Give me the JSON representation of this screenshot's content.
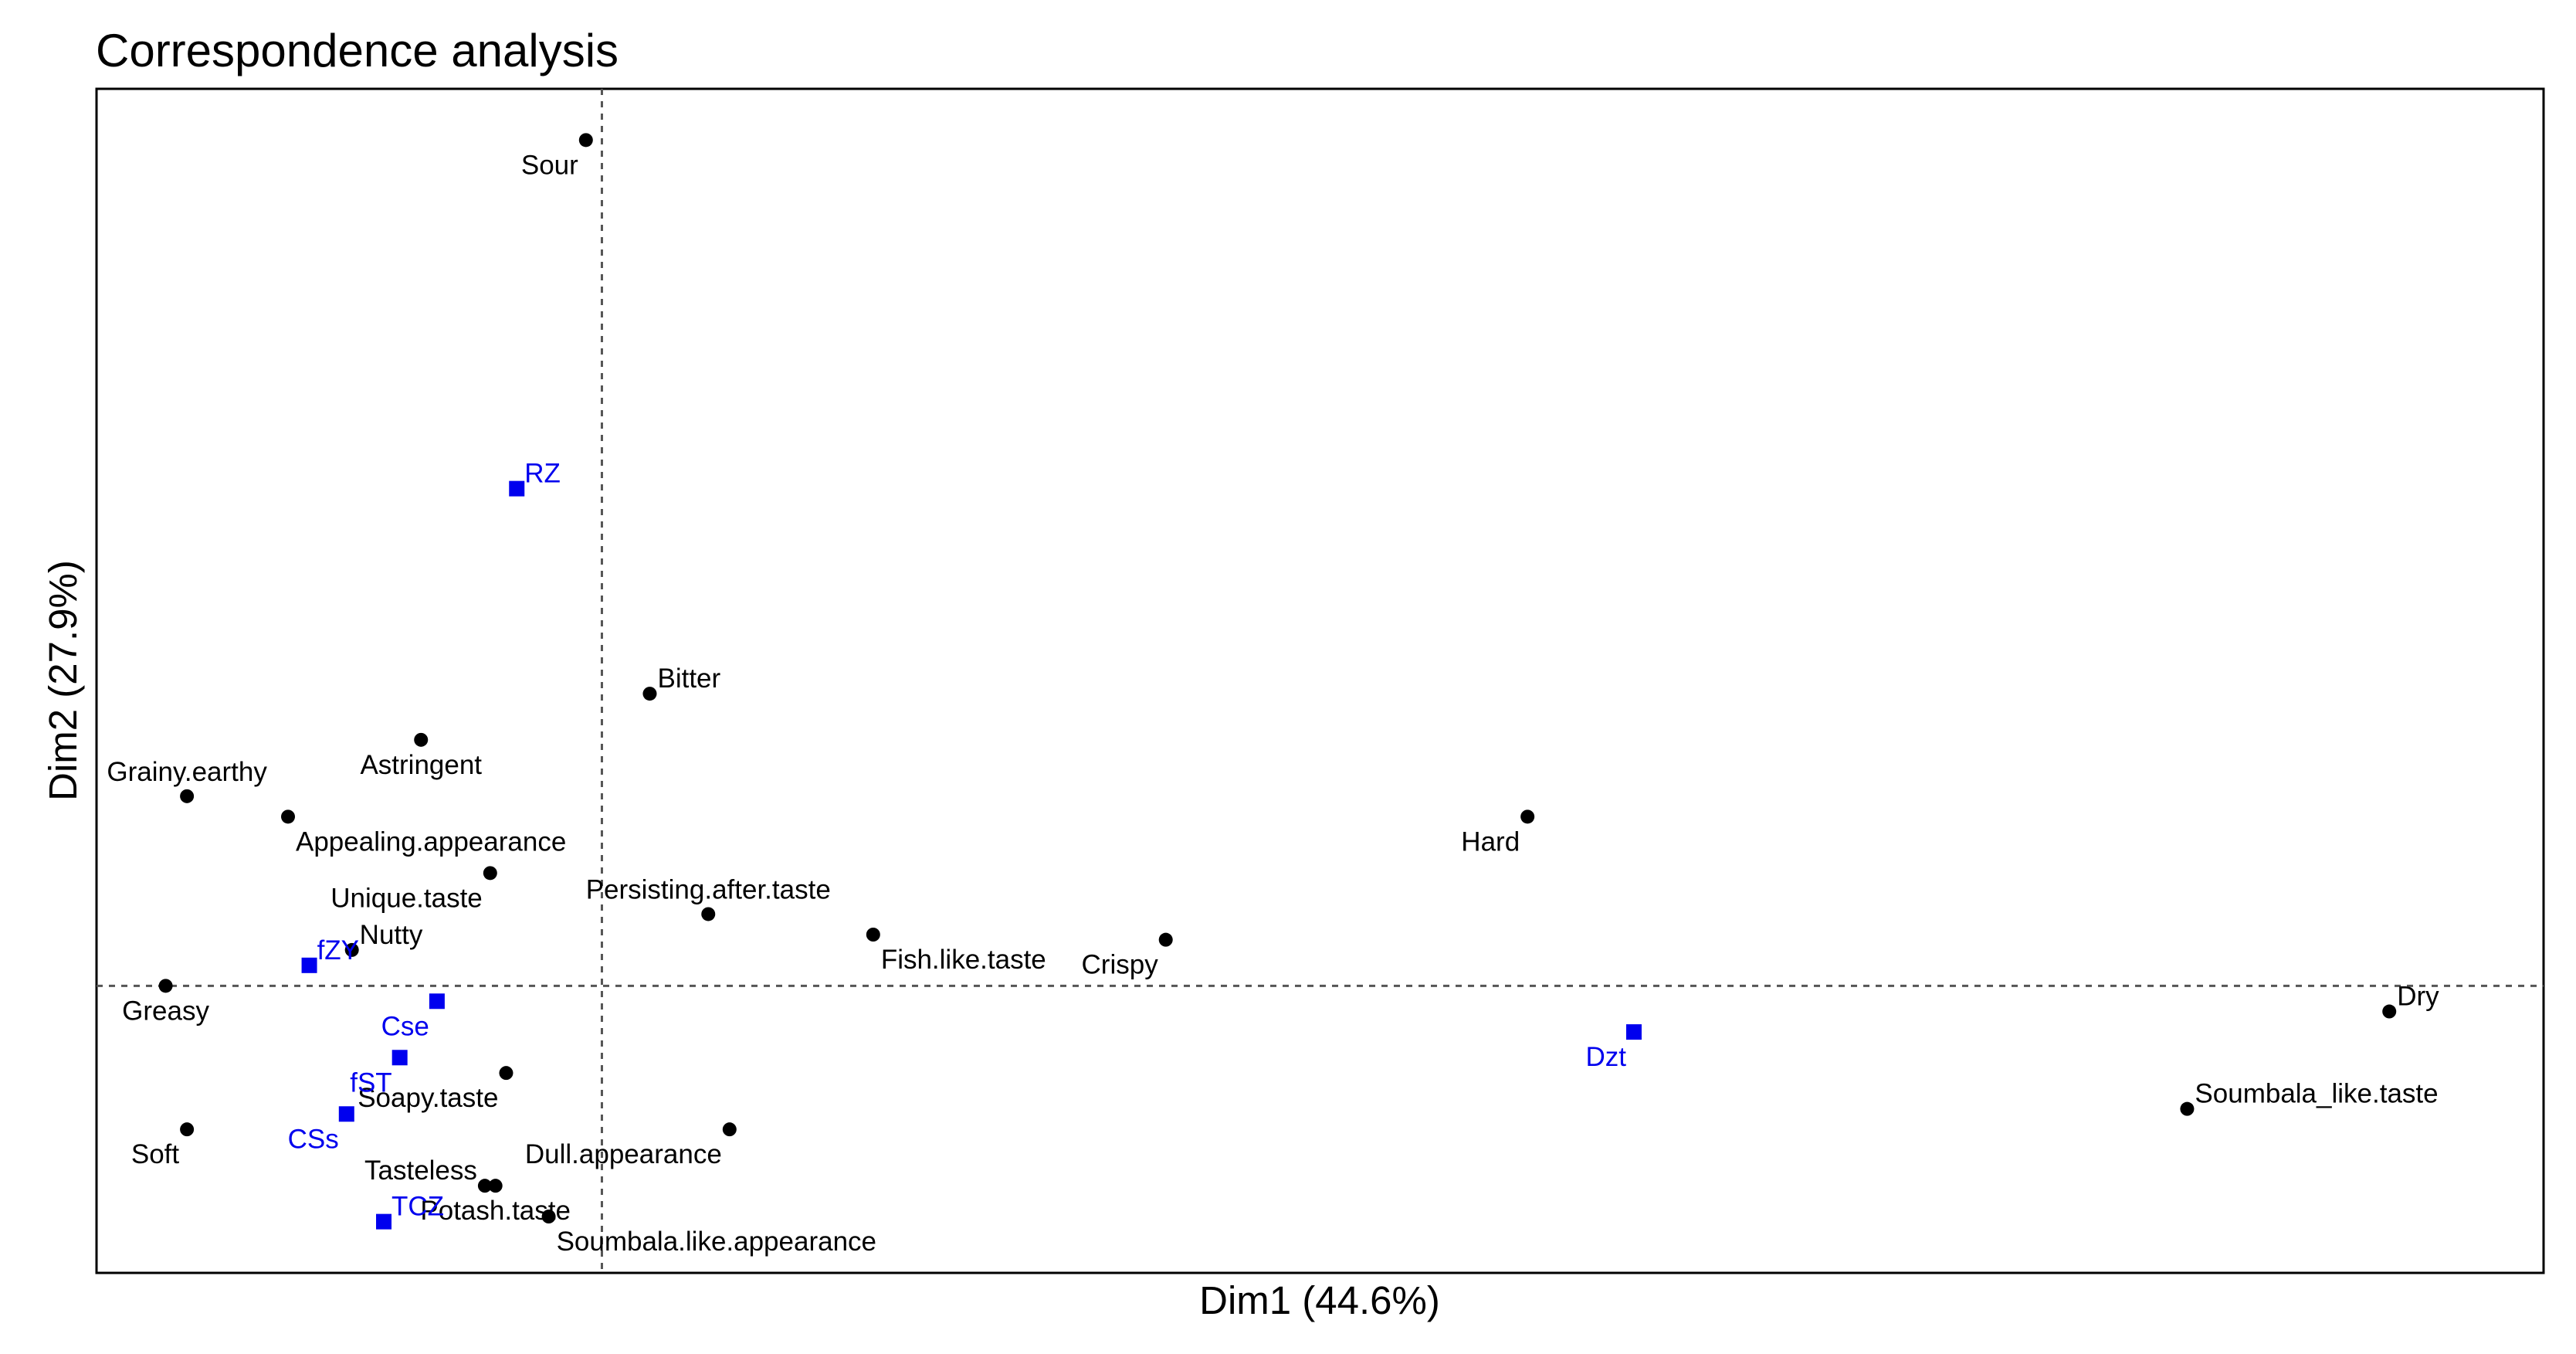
{
  "chart_data": {
    "type": "scatter",
    "title": "Correspondence analysis",
    "xlabel": "Dim1 (44.6%)",
    "ylabel": "Dim2 (27.9%)",
    "xlim": [
      -0.95,
      3.65
    ],
    "ylim": [
      -0.56,
      1.75
    ],
    "grid": false,
    "reference_lines": {
      "x": 0,
      "y": 0
    },
    "legend": "none",
    "colors": {
      "attributes": "#000000",
      "samples": "#0000ee"
    },
    "series": [
      {
        "marker": "circle",
        "color": "#000000",
        "points": [
          {
            "label": "Sour",
            "x": -0.03,
            "y": 1.65,
            "anchor": "bottom-left"
          },
          {
            "label": "Bitter",
            "x": 0.09,
            "y": 0.57,
            "anchor": "top-right"
          },
          {
            "label": "Astringent",
            "x": -0.34,
            "y": 0.48,
            "anchor": "bottom"
          },
          {
            "label": "Grainy.earthy",
            "x": -0.78,
            "y": 0.37,
            "anchor": "top"
          },
          {
            "label": "Appealing.appearance",
            "x": -0.59,
            "y": 0.33,
            "anchor": "bottom-right"
          },
          {
            "label": "Unique.taste",
            "x": -0.21,
            "y": 0.22,
            "anchor": "bottom-left"
          },
          {
            "label": "Persisting.after.taste",
            "x": 0.2,
            "y": 0.14,
            "anchor": "top"
          },
          {
            "label": "Fish.like.taste",
            "x": 0.51,
            "y": 0.1,
            "anchor": "bottom-right"
          },
          {
            "label": "Crispy",
            "x": 1.06,
            "y": 0.09,
            "anchor": "bottom-left"
          },
          {
            "label": "Hard",
            "x": 1.74,
            "y": 0.33,
            "anchor": "bottom-left"
          },
          {
            "label": "Nutty",
            "x": -0.47,
            "y": 0.07,
            "anchor": "top-right"
          },
          {
            "label": "Greasy",
            "x": -0.82,
            "y": 0.0,
            "anchor": "bottom"
          },
          {
            "label": "Soapy.taste",
            "x": -0.18,
            "y": -0.17,
            "anchor": "bottom-left"
          },
          {
            "label": "Soft",
            "x": -0.78,
            "y": -0.28,
            "anchor": "bottom-left"
          },
          {
            "label": "Dull.appearance",
            "x": 0.24,
            "y": -0.28,
            "anchor": "bottom-left"
          },
          {
            "label": "Tasteless",
            "x": -0.22,
            "y": -0.39,
            "anchor": "top-left"
          },
          {
            "label": "Potash.taste",
            "x": -0.2,
            "y": -0.39,
            "anchor": "bottom"
          },
          {
            "label": "Soumbala.like.appearance",
            "x": -0.1,
            "y": -0.45,
            "anchor": "bottom-right"
          },
          {
            "label": "Dry",
            "x": 3.36,
            "y": -0.05,
            "anchor": "top-right"
          },
          {
            "label": "Soumbala_like.taste",
            "x": 2.98,
            "y": -0.24,
            "anchor": "top-right"
          }
        ]
      },
      {
        "marker": "square",
        "color": "#0000ee",
        "points": [
          {
            "label": "RZ",
            "x": -0.16,
            "y": 0.97,
            "anchor": "top-right"
          },
          {
            "label": "fZY",
            "x": -0.55,
            "y": 0.04,
            "anchor": "top-right"
          },
          {
            "label": "Cse",
            "x": -0.31,
            "y": -0.03,
            "anchor": "bottom-left"
          },
          {
            "label": "fST",
            "x": -0.38,
            "y": -0.14,
            "anchor": "bottom-left"
          },
          {
            "label": "CSs",
            "x": -0.48,
            "y": -0.25,
            "anchor": "bottom-left"
          },
          {
            "label": "TCZ",
            "x": -0.41,
            "y": -0.46,
            "anchor": "top-right"
          },
          {
            "label": "Dzt",
            "x": 1.94,
            "y": -0.09,
            "anchor": "bottom-left"
          }
        ]
      }
    ]
  }
}
